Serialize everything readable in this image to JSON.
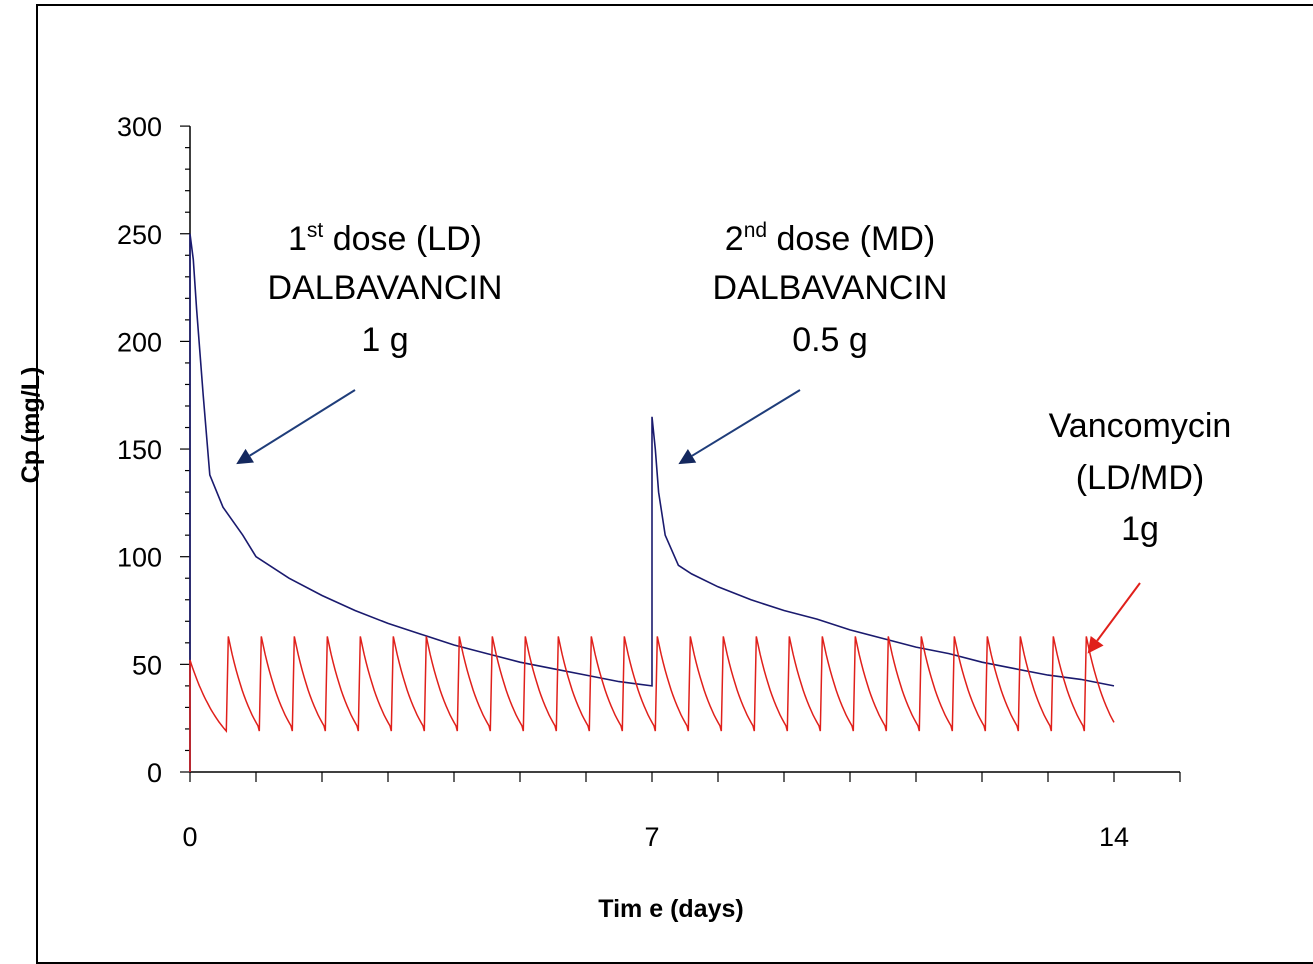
{
  "chart_data": {
    "type": "line",
    "title": "",
    "xlabel": "Tim e (days)",
    "ylabel": "Cp (mg/L)",
    "xlim": [
      0,
      15
    ],
    "ylim": [
      0,
      300
    ],
    "x_ticks": [
      0,
      7,
      14
    ],
    "y_ticks": [
      0,
      50,
      100,
      150,
      200,
      250,
      300
    ],
    "grid": false,
    "legend": "none",
    "series": [
      {
        "color": "#1a1a6e",
        "x": [
          0,
          0,
          0.05,
          0.1,
          0.2,
          0.3,
          0.5,
          0.8,
          1.0,
          1.5,
          2.0,
          2.5,
          3.0,
          3.5,
          4.0,
          4.5,
          5.0,
          5.5,
          6.0,
          6.5,
          7.0,
          7.0,
          7.05,
          7.1,
          7.2,
          7.4,
          7.6,
          8.0,
          8.5,
          9.0,
          9.5,
          10.0,
          10.5,
          11.0,
          11.5,
          12.0,
          12.5,
          13.0,
          13.5,
          14.0
        ],
        "y": [
          0,
          250,
          238,
          215,
          175,
          138,
          123,
          110,
          100,
          90,
          82,
          75,
          69,
          64,
          59,
          55,
          51,
          48,
          45,
          42,
          40,
          165,
          150,
          130,
          110,
          96,
          92,
          86,
          80,
          75,
          71,
          66,
          62,
          58,
          55,
          51,
          48,
          45,
          43,
          40
        ]
      },
      {
        "color": "#e0201b",
        "dose_interval_days": 0.5,
        "peak": 63,
        "trough": 19,
        "first_peak": 52,
        "end_day": 14
      }
    ],
    "annotations": [
      {
        "line1_pre": "1",
        "line1_sup": "st",
        "line1_post": " dose (LD)",
        "line2": "DALBAVANCIN",
        "line3": "1 g",
        "arrow_color": "#1f3d7a",
        "arrow_head": "#14285e",
        "target": [
          0.7,
          143
        ]
      },
      {
        "line1_pre": "2",
        "line1_sup": "nd",
        "line1_post": " dose (MD)",
        "line2": "DALBAVANCIN",
        "line3": "0.5 g",
        "arrow_color": "#1f3d7a",
        "arrow_head": "#14285e",
        "target": [
          7.4,
          143
        ]
      },
      {
        "line1_pre": "",
        "line1_sup": "",
        "line1_post": "Vancomycin",
        "line2": "(LD/MD)",
        "line3": "1g",
        "arrow_color": "#e0201b",
        "arrow_head": "#e0201b",
        "target": [
          13.6,
          55
        ]
      }
    ]
  }
}
